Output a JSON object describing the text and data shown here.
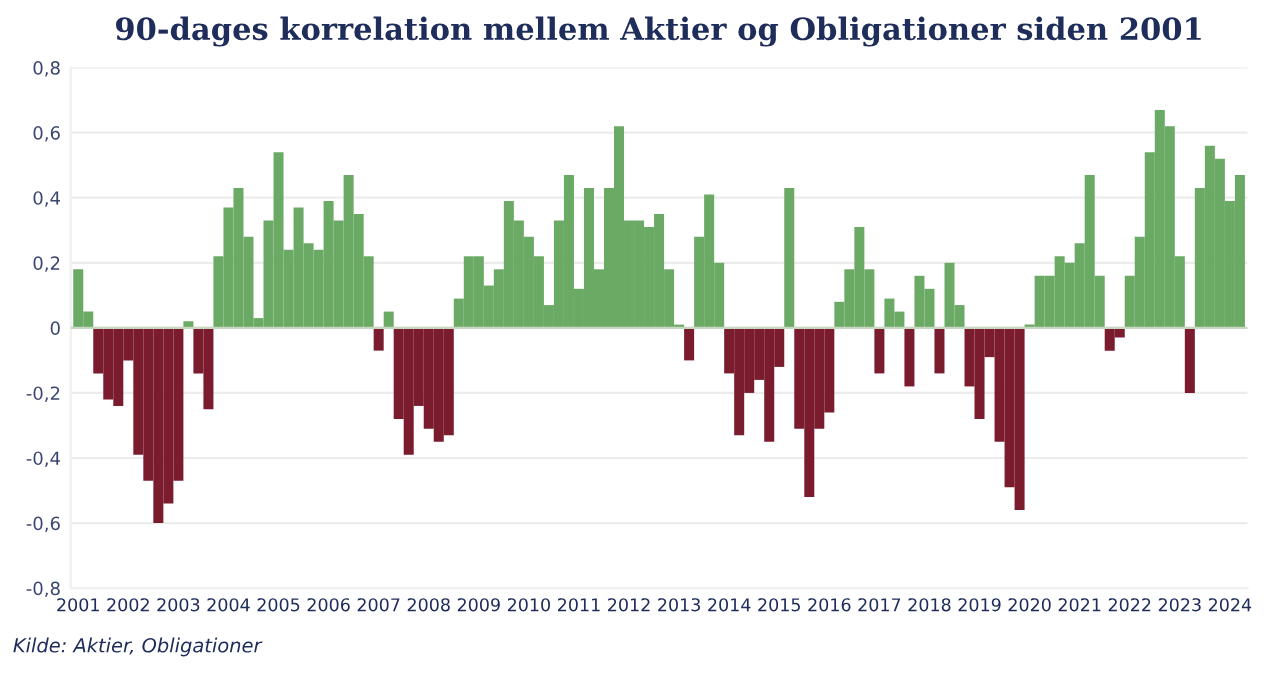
{
  "chart_data": {
    "type": "bar",
    "title": "90-dages korrelation mellem Aktier og Obligationer siden 2001",
    "x": [
      2001.0,
      2001.2,
      2001.4,
      2001.6,
      2001.8,
      2002.0,
      2002.2,
      2002.4,
      2002.6,
      2002.8,
      2003.0,
      2003.2,
      2003.4,
      2003.6,
      2003.8,
      2004.0,
      2004.2,
      2004.4,
      2004.6,
      2004.8,
      2005.0,
      2005.2,
      2005.4,
      2005.6,
      2005.8,
      2006.0,
      2006.2,
      2006.4,
      2006.6,
      2006.8,
      2007.0,
      2007.2,
      2007.4,
      2007.6,
      2007.8,
      2008.0,
      2008.2,
      2008.4,
      2008.6,
      2008.8,
      2009.0,
      2009.2,
      2009.4,
      2009.6,
      2009.8,
      2010.0,
      2010.2,
      2010.4,
      2010.6,
      2010.8,
      2011.0,
      2011.2,
      2011.4,
      2011.6,
      2011.8,
      2012.0,
      2012.2,
      2012.4,
      2012.6,
      2012.8,
      2013.0,
      2013.2,
      2013.4,
      2013.6,
      2013.8,
      2014.0,
      2014.2,
      2014.4,
      2014.6,
      2014.8,
      2015.0,
      2015.2,
      2015.4,
      2015.6,
      2015.8,
      2016.0,
      2016.2,
      2016.4,
      2016.6,
      2016.8,
      2017.0,
      2017.2,
      2017.4,
      2017.6,
      2017.8,
      2018.0,
      2018.2,
      2018.4,
      2018.6,
      2018.8,
      2019.0,
      2019.2,
      2019.4,
      2019.6,
      2019.8,
      2020.0,
      2020.2,
      2020.4,
      2020.6,
      2020.8,
      2021.0,
      2021.2,
      2021.4,
      2021.6,
      2021.8,
      2022.0,
      2022.2,
      2022.4,
      2022.6,
      2022.8,
      2023.0,
      2023.2,
      2023.4,
      2023.6,
      2023.8,
      2024.0,
      2024.2
    ],
    "values": [
      0.18,
      0.05,
      -0.14,
      -0.22,
      -0.24,
      -0.1,
      -0.39,
      -0.47,
      -0.6,
      -0.54,
      -0.47,
      0.02,
      -0.14,
      -0.25,
      0.22,
      0.37,
      0.43,
      0.28,
      0.03,
      0.33,
      0.54,
      0.24,
      0.37,
      0.26,
      0.24,
      0.39,
      0.33,
      0.47,
      0.35,
      0.22,
      -0.07,
      0.05,
      -0.28,
      -0.39,
      -0.24,
      -0.31,
      -0.35,
      -0.33,
      0.09,
      0.22,
      0.22,
      0.13,
      0.18,
      0.39,
      0.33,
      0.28,
      0.22,
      0.07,
      0.33,
      0.47,
      0.12,
      0.43,
      0.18,
      0.43,
      0.62,
      0.33,
      0.33,
      0.31,
      0.35,
      0.18,
      0.01,
      -0.1,
      0.28,
      0.41,
      0.2,
      -0.14,
      -0.33,
      -0.2,
      -0.16,
      -0.35,
      -0.12,
      0.43,
      -0.31,
      -0.52,
      -0.31,
      -0.26,
      0.08,
      0.18,
      0.31,
      0.18,
      -0.14,
      0.09,
      0.05,
      -0.18,
      0.16,
      0.12,
      -0.14,
      0.2,
      0.07,
      -0.18,
      -0.28,
      -0.09,
      -0.35,
      -0.49,
      -0.56,
      0.01,
      0.16,
      0.16,
      0.22,
      0.2,
      0.26,
      0.47,
      0.16,
      -0.07,
      -0.03,
      0.16,
      0.28,
      0.54,
      0.67,
      0.62,
      0.22,
      -0.2,
      0.43,
      0.56,
      0.52,
      0.39,
      0.47
    ],
    "colors": [
      "#6aaa64",
      "#6aaa64",
      "#7a1c2e",
      "#7a1c2e",
      "#7a1c2e",
      "#7a1c2e",
      "#7a1c2e",
      "#7a1c2e",
      "#7a1c2e",
      "#7a1c2e",
      "#7a1c2e",
      "#6aaa64",
      "#7a1c2e",
      "#7a1c2e",
      "#6aaa64",
      "#6aaa64",
      "#6aaa64",
      "#6aaa64",
      "#6aaa64",
      "#6aaa64",
      "#6aaa64",
      "#6aaa64",
      "#6aaa64",
      "#6aaa64",
      "#6aaa64",
      "#6aaa64",
      "#6aaa64",
      "#6aaa64",
      "#6aaa64",
      "#6aaa64",
      "#7a1c2e",
      "#6aaa64",
      "#7a1c2e",
      "#7a1c2e",
      "#7a1c2e",
      "#7a1c2e",
      "#7a1c2e",
      "#7a1c2e",
      "#6aaa64",
      "#6aaa64",
      "#6aaa64",
      "#6aaa64",
      "#6aaa64",
      "#6aaa64",
      "#6aaa64",
      "#6aaa64",
      "#6aaa64",
      "#6aaa64",
      "#6aaa64",
      "#6aaa64",
      "#6aaa64",
      "#6aaa64",
      "#6aaa64",
      "#6aaa64",
      "#6aaa64",
      "#6aaa64",
      "#6aaa64",
      "#6aaa64",
      "#6aaa64",
      "#6aaa64",
      "#6aaa64",
      "#7a1c2e",
      "#6aaa64",
      "#6aaa64",
      "#6aaa64",
      "#7a1c2e",
      "#7a1c2e",
      "#7a1c2e",
      "#7a1c2e",
      "#7a1c2e",
      "#7a1c2e",
      "#6aaa64",
      "#7a1c2e",
      "#7a1c2e",
      "#7a1c2e",
      "#7a1c2e",
      "#6aaa64",
      "#6aaa64",
      "#6aaa64",
      "#6aaa64",
      "#7a1c2e",
      "#6aaa64",
      "#6aaa64",
      "#7a1c2e",
      "#6aaa64",
      "#6aaa64",
      "#7a1c2e",
      "#6aaa64",
      "#6aaa64",
      "#7a1c2e",
      "#7a1c2e",
      "#7a1c2e",
      "#7a1c2e",
      "#7a1c2e",
      "#7a1c2e",
      "#6aaa64",
      "#6aaa64",
      "#6aaa64",
      "#6aaa64",
      "#6aaa64",
      "#6aaa64",
      "#6aaa64",
      "#6aaa64",
      "#7a1c2e",
      "#7a1c2e",
      "#6aaa64",
      "#6aaa64",
      "#6aaa64",
      "#6aaa64",
      "#6aaa64",
      "#6aaa64",
      "#7a1c2e",
      "#6aaa64",
      "#6aaa64",
      "#6aaa64",
      "#6aaa64",
      "#6aaa64"
    ],
    "xlim": [
      2000.85,
      2024.35
    ],
    "xticks": [
      2001,
      2002,
      2003,
      2004,
      2005,
      2006,
      2007,
      2008,
      2009,
      2010,
      2011,
      2012,
      2013,
      2014,
      2015,
      2016,
      2017,
      2018,
      2019,
      2020,
      2021,
      2022,
      2023,
      2024
    ],
    "ylim": [
      -0.8,
      0.8
    ],
    "yticks": [
      {
        "value": -0.8,
        "label": "-0,8"
      },
      {
        "value": -0.6,
        "label": "-0,6"
      },
      {
        "value": -0.4,
        "label": "-0,4"
      },
      {
        "value": -0.2,
        "label": "-0,2"
      },
      0,
      {
        "value": 0.2,
        "label": "0,2"
      },
      {
        "value": 0.4,
        "label": "0,4"
      },
      {
        "value": 0.6,
        "label": "0,6"
      },
      {
        "value": 0.8,
        "label": "0,8"
      }
    ],
    "grid": "y",
    "legend": false,
    "annotations": [
      "Kilde: Aktier, Obligationer"
    ]
  }
}
